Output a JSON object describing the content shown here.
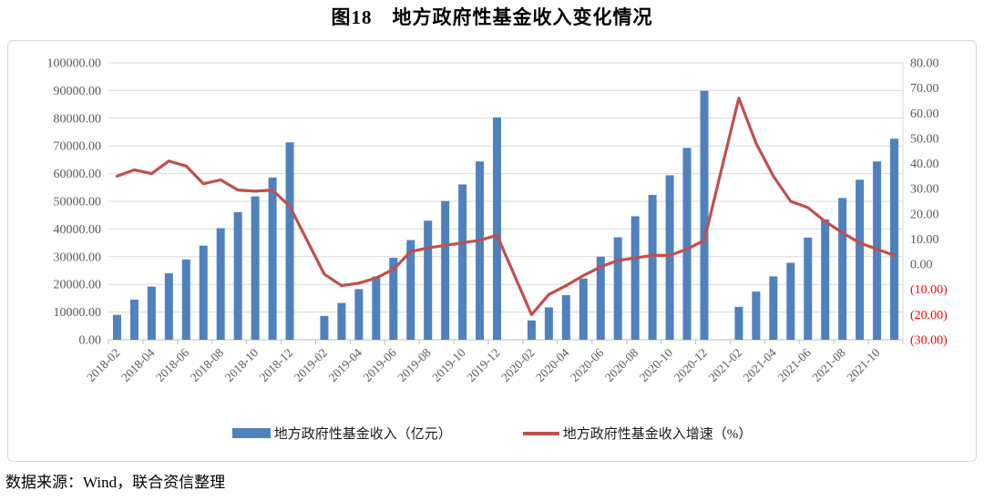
{
  "title": "图18　地方政府性基金收入变化情况",
  "source_note": "数据来源：Wind，联合资信整理",
  "legend": [
    {
      "label": "地方政府性基金收入（亿元）",
      "swatch": "bar",
      "color": "#4F81BD"
    },
    {
      "label": "地方政府性基金收入增速（%）",
      "swatch": "line",
      "color": "#C0504D"
    }
  ],
  "colors": {
    "bar": "#4F81BD",
    "line": "#C0504D",
    "grid": "#D9D9D9",
    "axis": "#BFBFBF",
    "tick_label": "#595959",
    "negative_label": "#FF0000",
    "frame_border": "#D6D6D6"
  },
  "chart_data": {
    "type": "bar",
    "subtype": "combo-bar-line",
    "title": "图18　地方政府性基金收入变化情况",
    "categories": [
      "2018-02",
      "2018-03",
      "2018-04",
      "2018-05",
      "2018-06",
      "2018-07",
      "2018-08",
      "2018-09",
      "2018-10",
      "2018-11",
      "2018-12",
      "2019-01",
      "2019-02",
      "2019-03",
      "2019-04",
      "2019-05",
      "2019-06",
      "2019-07",
      "2019-08",
      "2019-09",
      "2019-10",
      "2019-11",
      "2019-12",
      "2020-01",
      "2020-02",
      "2020-03",
      "2020-04",
      "2020-05",
      "2020-06",
      "2020-07",
      "2020-08",
      "2020-09",
      "2020-10",
      "2020-11",
      "2020-12",
      "2021-01",
      "2021-02",
      "2021-03",
      "2021-04",
      "2021-05",
      "2021-06",
      "2021-07",
      "2021-08",
      "2021-09",
      "2021-10",
      "2021-11"
    ],
    "series": [
      {
        "name": "地方政府性基金收入（亿元）",
        "type": "bar",
        "axis": "left",
        "color": "#4F81BD",
        "values": [
          9000,
          14500,
          19200,
          24000,
          29000,
          34000,
          40300,
          46100,
          51800,
          58600,
          71300,
          null,
          8600,
          13300,
          18300,
          22900,
          29600,
          36000,
          43000,
          50100,
          56100,
          64400,
          80300,
          null,
          7000,
          11700,
          16100,
          22100,
          30000,
          37000,
          44600,
          52300,
          59400,
          69300,
          89900,
          null,
          11900,
          17400,
          22900,
          27800,
          36900,
          43500,
          51200,
          57800,
          64400,
          72600
        ]
      },
      {
        "name": "地方政府性基金收入增速（%）",
        "type": "line",
        "axis": "right",
        "color": "#C0504D",
        "values": [
          35,
          37.5,
          36,
          41,
          39,
          32,
          33.5,
          29.5,
          29,
          29.5,
          23,
          null,
          -4,
          -8.5,
          -7.5,
          -5.5,
          -2,
          5,
          6.5,
          7.5,
          8.5,
          9.5,
          11.5,
          null,
          -20,
          -12,
          -8.5,
          -4.5,
          -1,
          1.5,
          2.5,
          3.5,
          3.5,
          6,
          9.5,
          null,
          66,
          48,
          35,
          25,
          22.5,
          17,
          12.5,
          8.5,
          6,
          3.5
        ]
      }
    ],
    "left_axis": {
      "min": 0,
      "max": 100000,
      "step": 10000,
      "labels": [
        "100000.00",
        "90000.00",
        "80000.00",
        "70000.00",
        "60000.00",
        "50000.00",
        "40000.00",
        "30000.00",
        "20000.00",
        "10000.00",
        "0.00"
      ]
    },
    "right_axis": {
      "min": -30,
      "max": 80,
      "step": 10,
      "labels": [
        "80.00",
        "70.00",
        "60.00",
        "50.00",
        "40.00",
        "30.00",
        "20.00",
        "10.00",
        "0.00",
        "(10.00)",
        "(20.00)",
        "(30.00)"
      ],
      "negative_labels": [
        "(10.00)",
        "(20.00)",
        "(30.00)"
      ]
    },
    "x_axis": {
      "label_every": 2,
      "tick_labels": [
        "2018-02",
        "2018-04",
        "2018-06",
        "2018-08",
        "2018-10",
        "2018-12",
        "2019-02",
        "2019-04",
        "2019-06",
        "2019-08",
        "2019-10",
        "2019-12",
        "2020-02",
        "2020-04",
        "2020-06",
        "2020-08",
        "2020-10",
        "2020-12",
        "2021-02",
        "2021-04",
        "2021-06",
        "2021-08",
        "2021-10"
      ]
    },
    "grid": true,
    "legend_position": "bottom"
  }
}
